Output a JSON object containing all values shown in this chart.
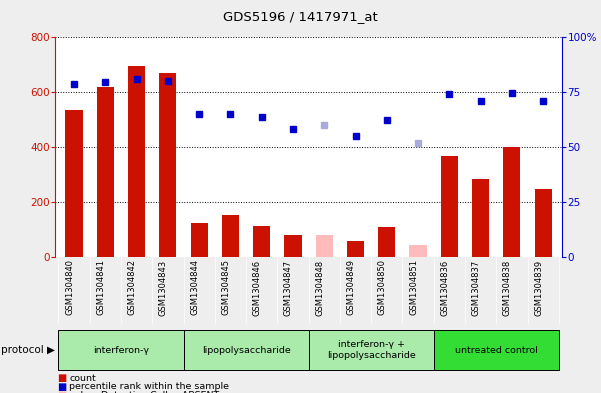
{
  "title": "GDS5196 / 1417971_at",
  "samples": [
    "GSM1304840",
    "GSM1304841",
    "GSM1304842",
    "GSM1304843",
    "GSM1304844",
    "GSM1304845",
    "GSM1304846",
    "GSM1304847",
    "GSM1304848",
    "GSM1304849",
    "GSM1304850",
    "GSM1304851",
    "GSM1304836",
    "GSM1304837",
    "GSM1304838",
    "GSM1304839"
  ],
  "count_present": [
    535,
    620,
    695,
    670,
    125,
    155,
    115,
    80,
    null,
    60,
    110,
    null,
    370,
    285,
    400,
    250
  ],
  "count_absent": [
    null,
    null,
    null,
    null,
    null,
    null,
    null,
    null,
    82,
    null,
    null,
    45,
    null,
    null,
    null,
    null
  ],
  "rank_present": [
    630,
    638,
    648,
    643,
    520,
    520,
    510,
    465,
    null,
    440,
    500,
    null,
    595,
    568,
    598,
    570
  ],
  "rank_absent": [
    null,
    null,
    null,
    null,
    null,
    null,
    null,
    null,
    480,
    null,
    null,
    415,
    null,
    null,
    null,
    null
  ],
  "groups": [
    {
      "label": "interferon-γ",
      "start": 0,
      "end": 4,
      "color": "#aaeaaa"
    },
    {
      "label": "lipopolysaccharide",
      "start": 4,
      "end": 8,
      "color": "#aaeaaa"
    },
    {
      "label": "interferon-γ +\nlipopolysaccharide",
      "start": 8,
      "end": 12,
      "color": "#aaeaaa"
    },
    {
      "label": "untreated control",
      "start": 12,
      "end": 16,
      "color": "#33dd33"
    }
  ],
  "ylim_left": [
    0,
    800
  ],
  "ylim_right": [
    0,
    100
  ],
  "yticks_left": [
    0,
    200,
    400,
    600,
    800
  ],
  "yticks_right": [
    0,
    25,
    50,
    75,
    100
  ],
  "bar_color_present": "#cc1100",
  "bar_color_absent": "#ffbbbb",
  "dot_color_present": "#0000cc",
  "dot_color_absent": "#aaaadd",
  "ax_bg": "#ffffff",
  "xtick_bg": "#cccccc",
  "fig_bg": "#eeeeee",
  "protocol_label": "protocol ▶"
}
